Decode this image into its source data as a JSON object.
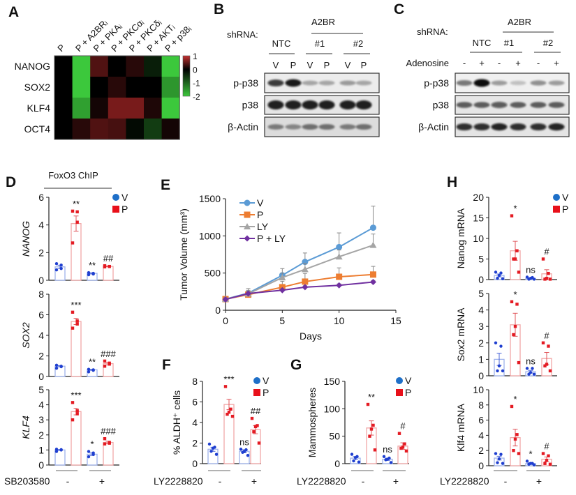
{
  "figure": {
    "panel_labels": [
      "A",
      "B",
      "C",
      "D",
      "E",
      "F",
      "G",
      "H"
    ],
    "legend": [
      "V",
      "P"
    ],
    "colors": {
      "V_point": "#1f3fd0",
      "V_bar": "#9fb2ec",
      "P_point": "#e41b23",
      "P_bar": "#f2a7a7",
      "V_legend": "#1e6fc8",
      "P_legend": "#e8101a"
    },
    "D_header": "FoxO3 ChIP",
    "D_treatment": {
      "label": "SB203580",
      "signs": [
        "-",
        "+"
      ]
    },
    "FGH_treatment": {
      "label": "LY2228820",
      "signs": [
        "-",
        "+"
      ]
    }
  },
  "blots": [
    {
      "panel": "B",
      "shrna_label": "shRNA:",
      "group_label": "A2BR",
      "groups": [
        "NTC",
        "#1",
        "#2"
      ],
      "condition_label": "",
      "lane_labels": [
        "V",
        "P",
        "V",
        "P",
        "V",
        "P"
      ],
      "rows": [
        {
          "name": "p-p38",
          "intensity": [
            0.8,
            0.95,
            0.3,
            0.3,
            0.35,
            0.3
          ]
        },
        {
          "name": "p38",
          "intensity": [
            0.92,
            0.92,
            0.92,
            0.92,
            0.92,
            0.92
          ]
        },
        {
          "name": "β-Actin",
          "intensity": [
            0.45,
            0.4,
            0.5,
            0.5,
            0.45,
            0.5
          ]
        }
      ]
    },
    {
      "panel": "C",
      "shrna_label": "shRNA:",
      "group_label": "A2BR",
      "groups": [
        "NTC",
        "#1",
        "#2"
      ],
      "condition_label": "Adenosine",
      "lane_labels": [
        "-",
        "+",
        "-",
        "+",
        "-",
        "+"
      ],
      "rows": [
        {
          "name": "p-p38",
          "intensity": [
            0.5,
            1.0,
            0.35,
            0.2,
            0.4,
            0.35
          ]
        },
        {
          "name": "p38",
          "intensity": [
            0.6,
            0.6,
            0.65,
            0.6,
            0.6,
            0.6
          ]
        },
        {
          "name": "β-Actin",
          "intensity": [
            0.85,
            0.85,
            0.9,
            0.85,
            0.85,
            0.9
          ]
        }
      ]
    }
  ],
  "chart_data": [
    {
      "panel": "A",
      "type": "heatmap",
      "rows": [
        "NANOG",
        "SOX2",
        "KLF4",
        "OCT4"
      ],
      "columns": [
        "P",
        "P + A2BRᵢ",
        "P + PKAᵢ",
        "P + PKCαᵢ",
        "P + PKCδᵢ",
        "P + AKTᵢ",
        "P + p38ᵢ"
      ],
      "values": [
        [
          0,
          -2,
          0.4,
          0,
          0.2,
          -0.3,
          -2
        ],
        [
          0,
          -2,
          0,
          0.2,
          0,
          0,
          -1.5
        ],
        [
          0,
          -1.6,
          0.1,
          0.6,
          0.6,
          0.15,
          -2
        ],
        [
          0,
          0.2,
          0.4,
          0.35,
          -0.1,
          -0.6,
          0.1
        ]
      ],
      "colorbar": {
        "range": [
          -2,
          1
        ],
        "ticks": [
          1,
          0,
          -1,
          -2
        ],
        "colors": {
          "high": "#c83232",
          "mid": "#000000",
          "low": "#3cc83c"
        }
      }
    },
    {
      "panel": "D",
      "type": "bar",
      "ylabel": "NANOG",
      "ylim": [
        0,
        6
      ],
      "yticks": [
        0,
        2,
        4,
        6
      ],
      "bars": [
        {
          "group": "V",
          "treatment": "-",
          "mean": 0.97,
          "sem": 0.12,
          "points": [
            1.2,
            1.1,
            0.85,
            0.75
          ],
          "annotation": ""
        },
        {
          "group": "P",
          "treatment": "-",
          "mean": 4.1,
          "sem": 0.55,
          "points": [
            5.0,
            4.95,
            4.2,
            2.7
          ],
          "annotation": "**"
        },
        {
          "group": "V",
          "treatment": "+",
          "mean": 0.5,
          "sem": 0.04,
          "points": [
            0.55,
            0.5,
            0.45,
            0.4
          ],
          "annotation": "**"
        },
        {
          "group": "P",
          "treatment": "+",
          "mean": 1.0,
          "sem": 0.02,
          "points": [
            1.05,
            1.0,
            1.0,
            0.97
          ],
          "annotation": "##"
        }
      ]
    },
    {
      "panel": "D",
      "type": "bar",
      "ylabel": "SOX2",
      "ylim": [
        0,
        8
      ],
      "yticks": [
        0,
        2,
        4,
        6,
        8
      ],
      "bars": [
        {
          "group": "V",
          "treatment": "-",
          "mean": 1.0,
          "sem": 0.06,
          "points": [
            1.1,
            1.0,
            0.95,
            0.8
          ],
          "annotation": ""
        },
        {
          "group": "P",
          "treatment": "-",
          "mean": 5.35,
          "sem": 0.3,
          "points": [
            6.25,
            5.4,
            5.1,
            4.7
          ],
          "annotation": "***"
        },
        {
          "group": "V",
          "treatment": "+",
          "mean": 0.65,
          "sem": 0.05,
          "points": [
            0.7,
            0.65,
            0.6,
            0.45
          ],
          "annotation": "**"
        },
        {
          "group": "P",
          "treatment": "+",
          "mean": 1.25,
          "sem": 0.12,
          "points": [
            1.5,
            1.3,
            1.2,
            1.0
          ],
          "annotation": "###"
        }
      ]
    },
    {
      "panel": "D",
      "type": "bar",
      "ylabel": "KLF4",
      "ylim": [
        0,
        5
      ],
      "yticks": [
        0,
        1,
        2,
        3,
        4,
        5
      ],
      "bars": [
        {
          "group": "V",
          "treatment": "-",
          "mean": 1.0,
          "sem": 0.03,
          "points": [
            1.05,
            1.02,
            1.0,
            0.9
          ],
          "annotation": ""
        },
        {
          "group": "P",
          "treatment": "-",
          "mean": 3.55,
          "sem": 0.22,
          "points": [
            4.15,
            3.6,
            3.4,
            3.0
          ],
          "annotation": "***"
        },
        {
          "group": "V",
          "treatment": "+",
          "mean": 0.72,
          "sem": 0.08,
          "points": [
            0.9,
            0.8,
            0.7,
            0.55
          ],
          "annotation": "*"
        },
        {
          "group": "P",
          "treatment": "+",
          "mean": 1.5,
          "sem": 0.08,
          "points": [
            1.75,
            1.5,
            1.45,
            1.4
          ],
          "annotation": "###"
        }
      ]
    },
    {
      "panel": "E",
      "type": "line",
      "xlabel": "Days",
      "ylabel": "Tumor Volume (mm³)",
      "xlim": [
        0,
        15
      ],
      "ylim": [
        0,
        1500
      ],
      "xticks": [
        0,
        5,
        10,
        15
      ],
      "yticks": [
        0,
        500,
        1000,
        1500
      ],
      "legend_position": "top-left",
      "x": [
        0,
        2,
        5,
        7,
        10,
        13
      ],
      "series": [
        {
          "name": "V",
          "color": "#5b9bd5",
          "marker": "circle",
          "values": [
            150,
            230,
            470,
            650,
            850,
            1110
          ],
          "error": [
            20,
            60,
            90,
            120,
            190,
            290
          ]
        },
        {
          "name": "P",
          "color": "#ed7d31",
          "marker": "square",
          "values": [
            150,
            210,
            310,
            385,
            450,
            480
          ],
          "error": [
            20,
            50,
            80,
            110,
            120,
            110
          ]
        },
        {
          "name": "LY",
          "color": "#a5a5a5",
          "marker": "triangle",
          "values": [
            150,
            220,
            440,
            550,
            720,
            875
          ],
          "error": [
            20,
            70,
            60,
            80,
            90,
            150
          ]
        },
        {
          "name": "P + LY",
          "color": "#7030a0",
          "marker": "diamond",
          "values": [
            145,
            225,
            270,
            310,
            335,
            380
          ],
          "error": [
            15,
            40,
            20,
            20,
            20,
            20
          ]
        }
      ]
    },
    {
      "panel": "F",
      "type": "bar",
      "ylabel": "% ALDH⁺ cells",
      "ylim": [
        0,
        8
      ],
      "yticks": [
        0,
        2,
        4,
        6,
        8
      ],
      "bars": [
        {
          "group": "V",
          "treatment": "-",
          "mean": 1.4,
          "sem": 0.2,
          "points": [
            1.9,
            1.6,
            1.5,
            1.2,
            0.9
          ],
          "annotation": ""
        },
        {
          "group": "P",
          "treatment": "-",
          "mean": 5.75,
          "sem": 0.5,
          "points": [
            7.5,
            5.3,
            5.0,
            4.8,
            4.6
          ],
          "annotation": "***"
        },
        {
          "group": "V",
          "treatment": "+",
          "mean": 1.2,
          "sem": 0.15,
          "points": [
            1.4,
            1.35,
            1.2,
            1.1,
            0.8
          ],
          "annotation": "ns"
        },
        {
          "group": "P",
          "treatment": "+",
          "mean": 3.3,
          "sem": 0.4,
          "points": [
            4.4,
            3.7,
            3.6,
            3.1,
            2.0
          ],
          "annotation": "##"
        }
      ]
    },
    {
      "panel": "G",
      "type": "bar",
      "ylabel": "Mammospheres",
      "ylim": [
        0,
        150
      ],
      "yticks": [
        0,
        50,
        100,
        150
      ],
      "bars": [
        {
          "group": "V",
          "treatment": "-",
          "mean": 10,
          "sem": 3,
          "points": [
            17,
            13,
            11,
            5,
            3
          ],
          "annotation": ""
        },
        {
          "group": "P",
          "treatment": "-",
          "mean": 65,
          "sem": 13,
          "points": [
            108,
            70,
            63,
            50,
            25
          ],
          "annotation": "**"
        },
        {
          "group": "V",
          "treatment": "+",
          "mean": 8,
          "sem": 2,
          "points": [
            13,
            10,
            8,
            7,
            2
          ],
          "annotation": "ns"
        },
        {
          "group": "P",
          "treatment": "+",
          "mean": 32,
          "sem": 6,
          "points": [
            55,
            36,
            30,
            28,
            23
          ],
          "annotation": "#"
        }
      ]
    },
    {
      "panel": "H",
      "type": "bar",
      "ylabel": "Nanog mRNA",
      "ylim": [
        0,
        20
      ],
      "yticks": [
        0,
        5,
        10,
        15,
        20
      ],
      "bars": [
        {
          "group": "V",
          "treatment": "-",
          "mean": 1.0,
          "sem": 0.35,
          "points": [
            1.8,
            1.6,
            1.0,
            0.3,
            0.2
          ],
          "annotation": ""
        },
        {
          "group": "P",
          "treatment": "-",
          "mean": 7.0,
          "sem": 2.3,
          "points": [
            15.5,
            7.0,
            5.0,
            5.0,
            1.8
          ],
          "annotation": "*"
        },
        {
          "group": "V",
          "treatment": "+",
          "mean": 0.3,
          "sem": 0.1,
          "points": [
            0.6,
            0.5,
            0.3,
            0.1,
            0.1
          ],
          "annotation": "ns"
        },
        {
          "group": "P",
          "treatment": "+",
          "mean": 1.4,
          "sem": 1.0,
          "points": [
            5.0,
            1.5,
            0.3,
            0.1,
            0.1
          ],
          "annotation": "#"
        }
      ]
    },
    {
      "panel": "H",
      "type": "bar",
      "ylabel": "Sox2 mRNA",
      "ylim": [
        0,
        5
      ],
      "yticks": [
        0,
        1,
        2,
        3,
        4,
        5
      ],
      "bars": [
        {
          "group": "V",
          "treatment": "-",
          "mean": 1.0,
          "sem": 0.37,
          "points": [
            2.0,
            1.8,
            0.6,
            0.3,
            0.3
          ],
          "annotation": ""
        },
        {
          "group": "P",
          "treatment": "-",
          "mean": 3.1,
          "sem": 0.7,
          "points": [
            4.5,
            4.35,
            3.0,
            2.5,
            0.8
          ],
          "annotation": "*"
        },
        {
          "group": "V",
          "treatment": "+",
          "mean": 0.25,
          "sem": 0.08,
          "points": [
            0.45,
            0.45,
            0.2,
            0.1,
            0.1
          ],
          "annotation": "ns"
        },
        {
          "group": "P",
          "treatment": "+",
          "mean": 1.05,
          "sem": 0.37,
          "points": [
            2.0,
            1.8,
            0.7,
            0.6,
            0.3
          ],
          "annotation": "#"
        }
      ]
    },
    {
      "panel": "H",
      "type": "bar",
      "ylabel": "Klf4 mRNA",
      "ylim": [
        0,
        10
      ],
      "yticks": [
        0,
        2,
        4,
        6,
        8,
        10
      ],
      "bars": [
        {
          "group": "V",
          "treatment": "-",
          "mean": 1.0,
          "sem": 0.25,
          "points": [
            1.6,
            1.5,
            0.9,
            0.4,
            0.3
          ],
          "annotation": ""
        },
        {
          "group": "P",
          "treatment": "-",
          "mean": 3.7,
          "sem": 1.1,
          "points": [
            7.8,
            4.1,
            3.5,
            2.0,
            1.6
          ],
          "annotation": "*"
        },
        {
          "group": "V",
          "treatment": "+",
          "mean": 0.3,
          "sem": 0.1,
          "points": [
            0.6,
            0.3,
            0.3,
            0.2,
            0.1
          ],
          "annotation": "*"
        },
        {
          "group": "P",
          "treatment": "+",
          "mean": 0.85,
          "sem": 0.3,
          "points": [
            1.6,
            1.3,
            0.7,
            0.3,
            0.2
          ],
          "annotation": "#"
        }
      ]
    }
  ]
}
